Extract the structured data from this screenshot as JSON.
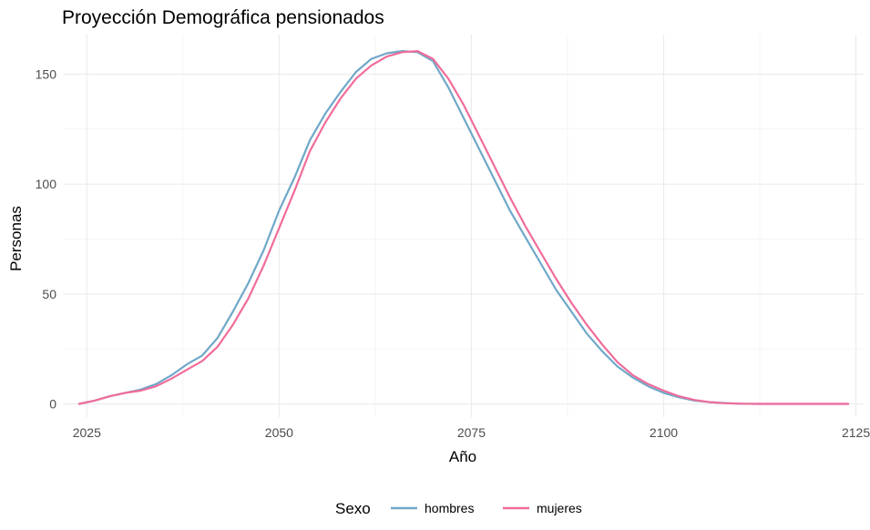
{
  "chart_data": {
    "type": "line",
    "title": "Proyección Demográfica pensionados",
    "xlabel": "Año",
    "ylabel": "Personas",
    "xlim": [
      2022,
      2126
    ],
    "ylim": [
      -6,
      168
    ],
    "xticks": [
      2025,
      2050,
      2075,
      2100,
      2125
    ],
    "yticks": [
      0,
      50,
      100,
      150
    ],
    "x_tick_labels": [
      "2025",
      "2050",
      "2075",
      "2100",
      "2125"
    ],
    "y_tick_labels": [
      "0",
      "50",
      "100",
      "150"
    ],
    "grid": true,
    "legend": {
      "title": "Sexo",
      "position": "bottom"
    },
    "series": [
      {
        "name": "hombres",
        "color": "#6fa8c8",
        "x": [
          2024,
          2026,
          2028,
          2030,
          2032,
          2034,
          2036,
          2038,
          2040,
          2042,
          2044,
          2046,
          2048,
          2050,
          2052,
          2054,
          2056,
          2058,
          2060,
          2062,
          2064,
          2066,
          2068,
          2070,
          2072,
          2074,
          2076,
          2078,
          2080,
          2082,
          2084,
          2086,
          2088,
          2090,
          2092,
          2094,
          2096,
          2098,
          2100,
          2102,
          2104,
          2106,
          2108,
          2110,
          2112,
          2114,
          2116,
          2118,
          2120,
          2122,
          2124
        ],
        "values": [
          0,
          1.5,
          3.5,
          5,
          6.5,
          9,
          13,
          18,
          22,
          30,
          42,
          55,
          70,
          88,
          103,
          120,
          132,
          142,
          151,
          157,
          159.5,
          160.5,
          160,
          156,
          144,
          130,
          116,
          102,
          88,
          76,
          64,
          52,
          42,
          32,
          24,
          17,
          12,
          8,
          5,
          3,
          1.5,
          0.8,
          0.4,
          0.1,
          0,
          0,
          0,
          0,
          0,
          0,
          0
        ]
      },
      {
        "name": "mujeres",
        "color": "#f06c9b",
        "x": [
          2024,
          2026,
          2028,
          2030,
          2032,
          2034,
          2036,
          2038,
          2040,
          2042,
          2044,
          2046,
          2048,
          2050,
          2052,
          2054,
          2056,
          2058,
          2060,
          2062,
          2064,
          2066,
          2068,
          2070,
          2072,
          2074,
          2076,
          2078,
          2080,
          2082,
          2084,
          2086,
          2088,
          2090,
          2092,
          2094,
          2096,
          2098,
          2100,
          2102,
          2104,
          2106,
          2108,
          2110,
          2112,
          2114,
          2116,
          2118,
          2120,
          2122,
          2124
        ],
        "values": [
          0,
          1.5,
          3.5,
          5,
          6,
          8,
          11.5,
          15.5,
          19.5,
          26,
          36,
          48,
          63,
          80,
          97,
          115,
          128,
          139,
          148,
          154,
          158,
          160,
          160.5,
          157,
          148,
          136,
          122,
          108,
          94,
          81,
          69,
          57,
          46,
          36,
          27,
          19,
          13,
          9,
          6,
          3.5,
          1.8,
          0.8,
          0.3,
          0.1,
          0,
          0,
          0,
          0,
          0,
          0,
          0
        ]
      }
    ]
  }
}
